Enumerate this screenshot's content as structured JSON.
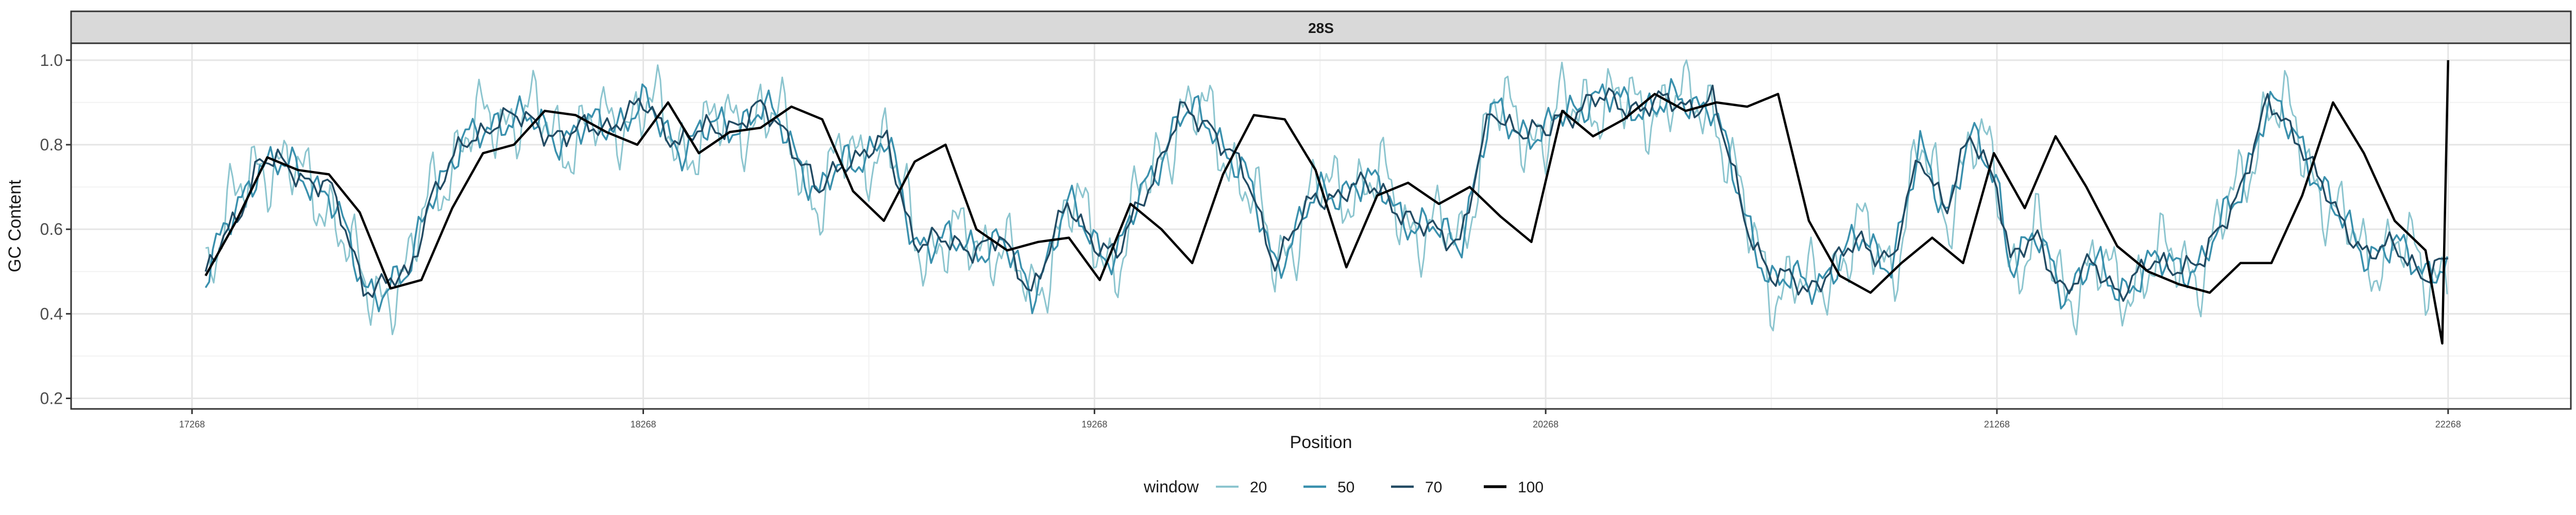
{
  "chart_data": {
    "type": "line",
    "title": "",
    "facet_label": "28S",
    "xlabel": "Position",
    "ylabel": "GC Content",
    "xlim": [
      17268,
      22268
    ],
    "ylim": [
      0.2,
      1.0
    ],
    "x_ticks": [
      17268,
      18268,
      19268,
      20268,
      21268,
      22268
    ],
    "x_tick_labels": [
      "17268",
      "18268",
      "19268",
      "20268",
      "21268",
      "22268"
    ],
    "y_ticks": [
      0.2,
      0.4,
      0.6,
      0.8,
      1.0
    ],
    "y_tick_labels": [
      "0.2",
      "0.4",
      "0.6",
      "0.8",
      "1.0"
    ],
    "grid": true,
    "legend": {
      "title": "window",
      "position": "bottom",
      "entries": [
        "20",
        "50",
        "70",
        "100"
      ]
    },
    "colors": {
      "20": "#8cc5cf",
      "50": "#3a90ad",
      "70": "#234b63",
      "100": "#000000",
      "strip_fill": "#d9d9d9",
      "grid_major": "#e5e5e5",
      "grid_minor": "#f2f2f2",
      "panel_border": "#333333"
    },
    "trend_x": [
      17298,
      17368,
      17418,
      17498,
      17568,
      17648,
      17748,
      17798,
      17868,
      17948,
      18018,
      18098,
      18188,
      18268,
      18348,
      18438,
      18528,
      18588,
      18658,
      18718,
      18808,
      18868,
      18958,
      19058,
      19128,
      19208,
      19268,
      19318,
      19388,
      19458,
      19528,
      19598,
      19668,
      19758,
      19838,
      19908,
      19988,
      20078,
      20148,
      20268,
      20298,
      20368,
      20438,
      20508,
      20568,
      20638,
      20708,
      20768,
      20848,
      20908,
      20968,
      21038,
      21098,
      21158,
      21208,
      21268,
      21298,
      21358,
      21418,
      21478,
      21538,
      21608,
      21668,
      21728,
      21798,
      21868,
      21938,
      22018,
      22088,
      22148,
      22218,
      22268,
      22298
    ],
    "series": [
      {
        "name": "20",
        "amp": 0.09,
        "y": [
          0.52,
          0.66,
          0.78,
          0.72,
          0.68,
          0.45,
          0.48,
          0.7,
          0.8,
          0.88,
          0.86,
          0.82,
          0.84,
          0.9,
          0.8,
          0.84,
          0.88,
          0.82,
          0.66,
          0.78,
          0.8,
          0.58,
          0.56,
          0.58,
          0.42,
          0.66,
          0.58,
          0.52,
          0.72,
          0.88,
          0.85,
          0.72,
          0.52,
          0.68,
          0.71,
          0.7,
          0.6,
          0.57,
          0.88,
          0.82,
          0.86,
          0.92,
          0.88,
          0.9,
          0.89,
          0.91,
          0.62,
          0.48,
          0.45,
          0.52,
          0.58,
          0.52,
          0.78,
          0.64,
          0.82,
          0.72,
          0.52,
          0.58,
          0.45,
          0.52,
          0.45,
          0.52,
          0.52,
          0.52,
          0.68,
          0.9,
          0.82,
          0.62,
          0.54,
          0.56,
          0.5,
          0.52,
          0.44
        ]
      },
      {
        "name": "50",
        "amp": 0.045,
        "y": [
          0.5,
          0.64,
          0.77,
          0.73,
          0.7,
          0.46,
          0.48,
          0.7,
          0.79,
          0.87,
          0.85,
          0.82,
          0.85,
          0.89,
          0.8,
          0.84,
          0.88,
          0.83,
          0.67,
          0.77,
          0.8,
          0.58,
          0.56,
          0.57,
          0.45,
          0.65,
          0.58,
          0.53,
          0.72,
          0.87,
          0.85,
          0.73,
          0.52,
          0.67,
          0.71,
          0.69,
          0.6,
          0.58,
          0.87,
          0.82,
          0.86,
          0.92,
          0.89,
          0.9,
          0.89,
          0.91,
          0.62,
          0.49,
          0.46,
          0.52,
          0.57,
          0.53,
          0.78,
          0.65,
          0.81,
          0.72,
          0.53,
          0.57,
          0.46,
          0.51,
          0.46,
          0.51,
          0.52,
          0.52,
          0.68,
          0.89,
          0.82,
          0.63,
          0.55,
          0.55,
          0.51,
          0.52,
          0.46
        ]
      },
      {
        "name": "70",
        "amp": 0.03,
        "y": [
          0.49,
          0.63,
          0.77,
          0.73,
          0.71,
          0.47,
          0.48,
          0.69,
          0.79,
          0.87,
          0.85,
          0.82,
          0.85,
          0.89,
          0.81,
          0.84,
          0.88,
          0.83,
          0.68,
          0.77,
          0.8,
          0.58,
          0.56,
          0.57,
          0.46,
          0.65,
          0.58,
          0.53,
          0.71,
          0.87,
          0.85,
          0.73,
          0.53,
          0.67,
          0.7,
          0.69,
          0.6,
          0.58,
          0.87,
          0.82,
          0.86,
          0.91,
          0.89,
          0.9,
          0.89,
          0.91,
          0.63,
          0.49,
          0.46,
          0.52,
          0.57,
          0.53,
          0.77,
          0.66,
          0.81,
          0.72,
          0.53,
          0.57,
          0.46,
          0.51,
          0.46,
          0.51,
          0.52,
          0.52,
          0.68,
          0.89,
          0.82,
          0.63,
          0.55,
          0.55,
          0.5,
          0.52,
          0.4
        ]
      },
      {
        "name": "100",
        "amp": 0,
        "y": [
          0.49,
          0.62,
          0.77,
          0.74,
          0.73,
          0.64,
          0.46,
          0.48,
          0.65,
          0.78,
          0.8,
          0.88,
          0.87,
          0.83,
          0.8,
          0.9,
          0.78,
          0.83,
          0.84,
          0.89,
          0.86,
          0.69,
          0.62,
          0.76,
          0.8,
          0.6,
          0.55,
          0.57,
          0.58,
          0.48,
          0.66,
          0.6,
          0.52,
          0.73,
          0.87,
          0.86,
          0.74,
          0.51,
          0.68,
          0.71,
          0.66,
          0.7,
          0.63,
          0.57,
          0.88,
          0.82,
          0.86,
          0.92,
          0.88,
          0.9,
          0.89,
          0.92,
          0.62,
          0.49,
          0.45,
          0.52,
          0.58,
          0.52,
          0.78,
          0.65,
          0.82,
          0.7,
          0.56,
          0.5,
          0.47,
          0.45,
          0.52,
          0.52,
          0.68,
          0.9,
          0.78,
          0.62,
          0.55
        ]
      }
    ]
  }
}
